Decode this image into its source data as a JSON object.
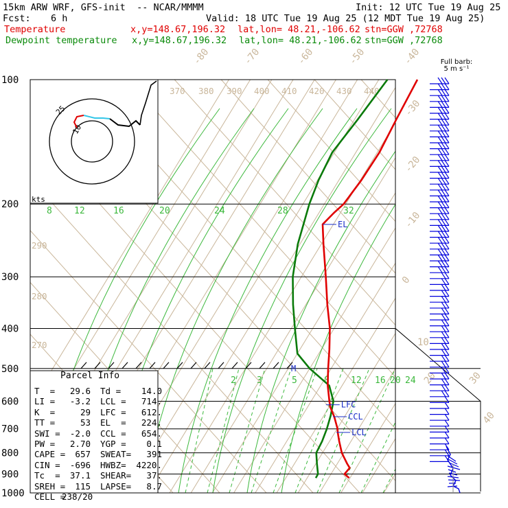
{
  "header": {
    "model": "15km ARW WRF, GFS-init  -- NCAR/MMMM",
    "init": "Init: 12 UTC Tue 19 Aug 25",
    "fcst_label": "Fcst:",
    "fcst_value": "6 h",
    "valid": "Valid: 18 UTC Tue 19 Aug 25 (12 MDT Tue 19 Aug 25)",
    "temp_label": "Temperature",
    "temp_xy": "x,y=148.67,196.32",
    "temp_latlon": "lat,lon= 48.21,-106.62",
    "temp_stn": "stn=GGW ,72768",
    "dew_label": "Dewpoint temperature",
    "dew_xy": "x,y=148.67,196.32",
    "dew_latlon": "lat,lon= 48.21,-106.62",
    "dew_stn": "stn=GGW ,72768"
  },
  "barb_title": "Full barb:",
  "barb_unit": "5 m s⁻¹",
  "hodo_label": "kts",
  "hodo_rings": [
    "10",
    "25"
  ],
  "parcel": {
    "title": "Parcel Info",
    "rows": [
      [
        "T  =",
        "29.6",
        "Td =",
        "14.0"
      ],
      [
        "LI =",
        "-3.2",
        "LCL =",
        "714."
      ],
      [
        "K  =",
        "29",
        "LFC =",
        "612."
      ],
      [
        "TT =",
        "53",
        "EL  =",
        "224."
      ],
      [
        "SWI =",
        "-2.0",
        "CCL =",
        "654."
      ],
      [
        "PW =",
        "2.70",
        "YGP =",
        "0.1"
      ],
      [
        "CAPE =",
        "657",
        "SWEAT=",
        "391"
      ],
      [
        "CIN =",
        "-696",
        "HWBZ=",
        "4220."
      ],
      [
        "Tc  =",
        "37.1",
        "SHEAR=",
        "37."
      ],
      [
        "SREH =",
        "115",
        "LAPSE=",
        "8.7"
      ],
      [
        "CELL =",
        "238/20",
        "",
        ""
      ]
    ]
  },
  "colors": {
    "temperature": "#e00000",
    "dewpoint": "#0a7a0a",
    "isotherm": "#c9b69a",
    "mixing_ratio": "#3cb83c",
    "wind_barb": "#0000dd",
    "annotation": "#1a2ec8"
  },
  "chart_data": {
    "type": "line",
    "y_axis": "pressure (hPa), log scale",
    "pressure_ticks": [
      100,
      200,
      300,
      400,
      500,
      600,
      700,
      800,
      900,
      1000
    ],
    "isotherm_labels": [
      "-80",
      "-70",
      "-60",
      "-50",
      "-40",
      "-30",
      "-20",
      "-10",
      "0",
      "10",
      "20",
      "30",
      "40"
    ],
    "theta_labels": [
      "370",
      "380",
      "390",
      "400",
      "410",
      "420",
      "430",
      "440",
      "290",
      "280",
      "270"
    ],
    "mixing_ratio_labels_upper": [
      "8",
      "12",
      "16",
      "20",
      "24",
      "28",
      "32"
    ],
    "mixing_ratio_labels_lower": [
      "2",
      "3",
      "5",
      "8",
      "12",
      "16",
      "20",
      "24"
    ],
    "levels": [
      {
        "name": "EL",
        "p": 224
      },
      {
        "name": "M",
        "p": 500
      },
      {
        "name": "LFC",
        "p": 612
      },
      {
        "name": "CCL",
        "p": 654
      },
      {
        "name": "LCL",
        "p": 714
      }
    ],
    "series": [
      {
        "name": "Temperature",
        "units": "degC",
        "points": [
          [
            920,
            29.6
          ],
          [
            900,
            26.3
          ],
          [
            870,
            27.0
          ],
          [
            850,
            24.6
          ],
          [
            800,
            19.0
          ],
          [
            750,
            14.5
          ],
          [
            714,
            11.3
          ],
          [
            700,
            10.2
          ],
          [
            654,
            5.2
          ],
          [
            620,
            0.6
          ],
          [
            600,
            -1.5
          ],
          [
            550,
            -6.7
          ],
          [
            500,
            -11.4
          ],
          [
            450,
            -16.2
          ],
          [
            400,
            -22.0
          ],
          [
            350,
            -30.0
          ],
          [
            300,
            -38.6
          ],
          [
            250,
            -49.0
          ],
          [
            224,
            -55.0
          ],
          [
            210,
            -53.0
          ],
          [
            200,
            -51.0
          ],
          [
            175,
            -49.5
          ],
          [
            150,
            -49.0
          ],
          [
            125,
            -50.5
          ],
          [
            100,
            -52.0
          ]
        ]
      },
      {
        "name": "Dewpoint temperature",
        "units": "degC",
        "points": [
          [
            920,
            14.0
          ],
          [
            900,
            13.9
          ],
          [
            850,
            10.5
          ],
          [
            800,
            7.1
          ],
          [
            750,
            6.5
          ],
          [
            700,
            5.2
          ],
          [
            650,
            3.2
          ],
          [
            600,
            0.4
          ],
          [
            550,
            -6.0
          ],
          [
            500,
            -20.0
          ],
          [
            460,
            -30.0
          ],
          [
            400,
            -38.3
          ],
          [
            350,
            -46.0
          ],
          [
            300,
            -54.0
          ],
          [
            250,
            -61.0
          ],
          [
            200,
            -67.0
          ],
          [
            175,
            -69.5
          ],
          [
            150,
            -71.0
          ],
          [
            125,
            -68.5
          ],
          [
            100,
            -66.0
          ]
        ]
      }
    ]
  }
}
